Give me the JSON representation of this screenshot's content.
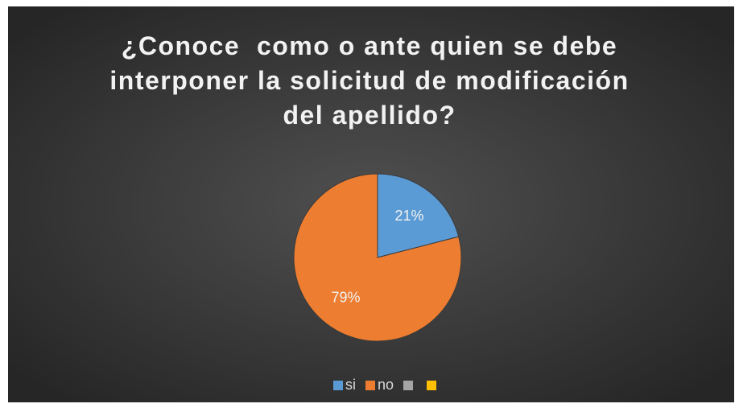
{
  "chart_data": {
    "type": "pie",
    "title": "¿Conoce  como o ante quien se debe interponer la solicitud de modificación del apellido?",
    "categories": [
      "si",
      "no",
      null,
      null
    ],
    "values": [
      21,
      79,
      0,
      0
    ],
    "value_labels": [
      "21%",
      "79%",
      null,
      null
    ],
    "colors": [
      "#5b9bd5",
      "#ed7d31",
      "#a5a5a5",
      "#ffc000"
    ],
    "legend": "bottom"
  }
}
